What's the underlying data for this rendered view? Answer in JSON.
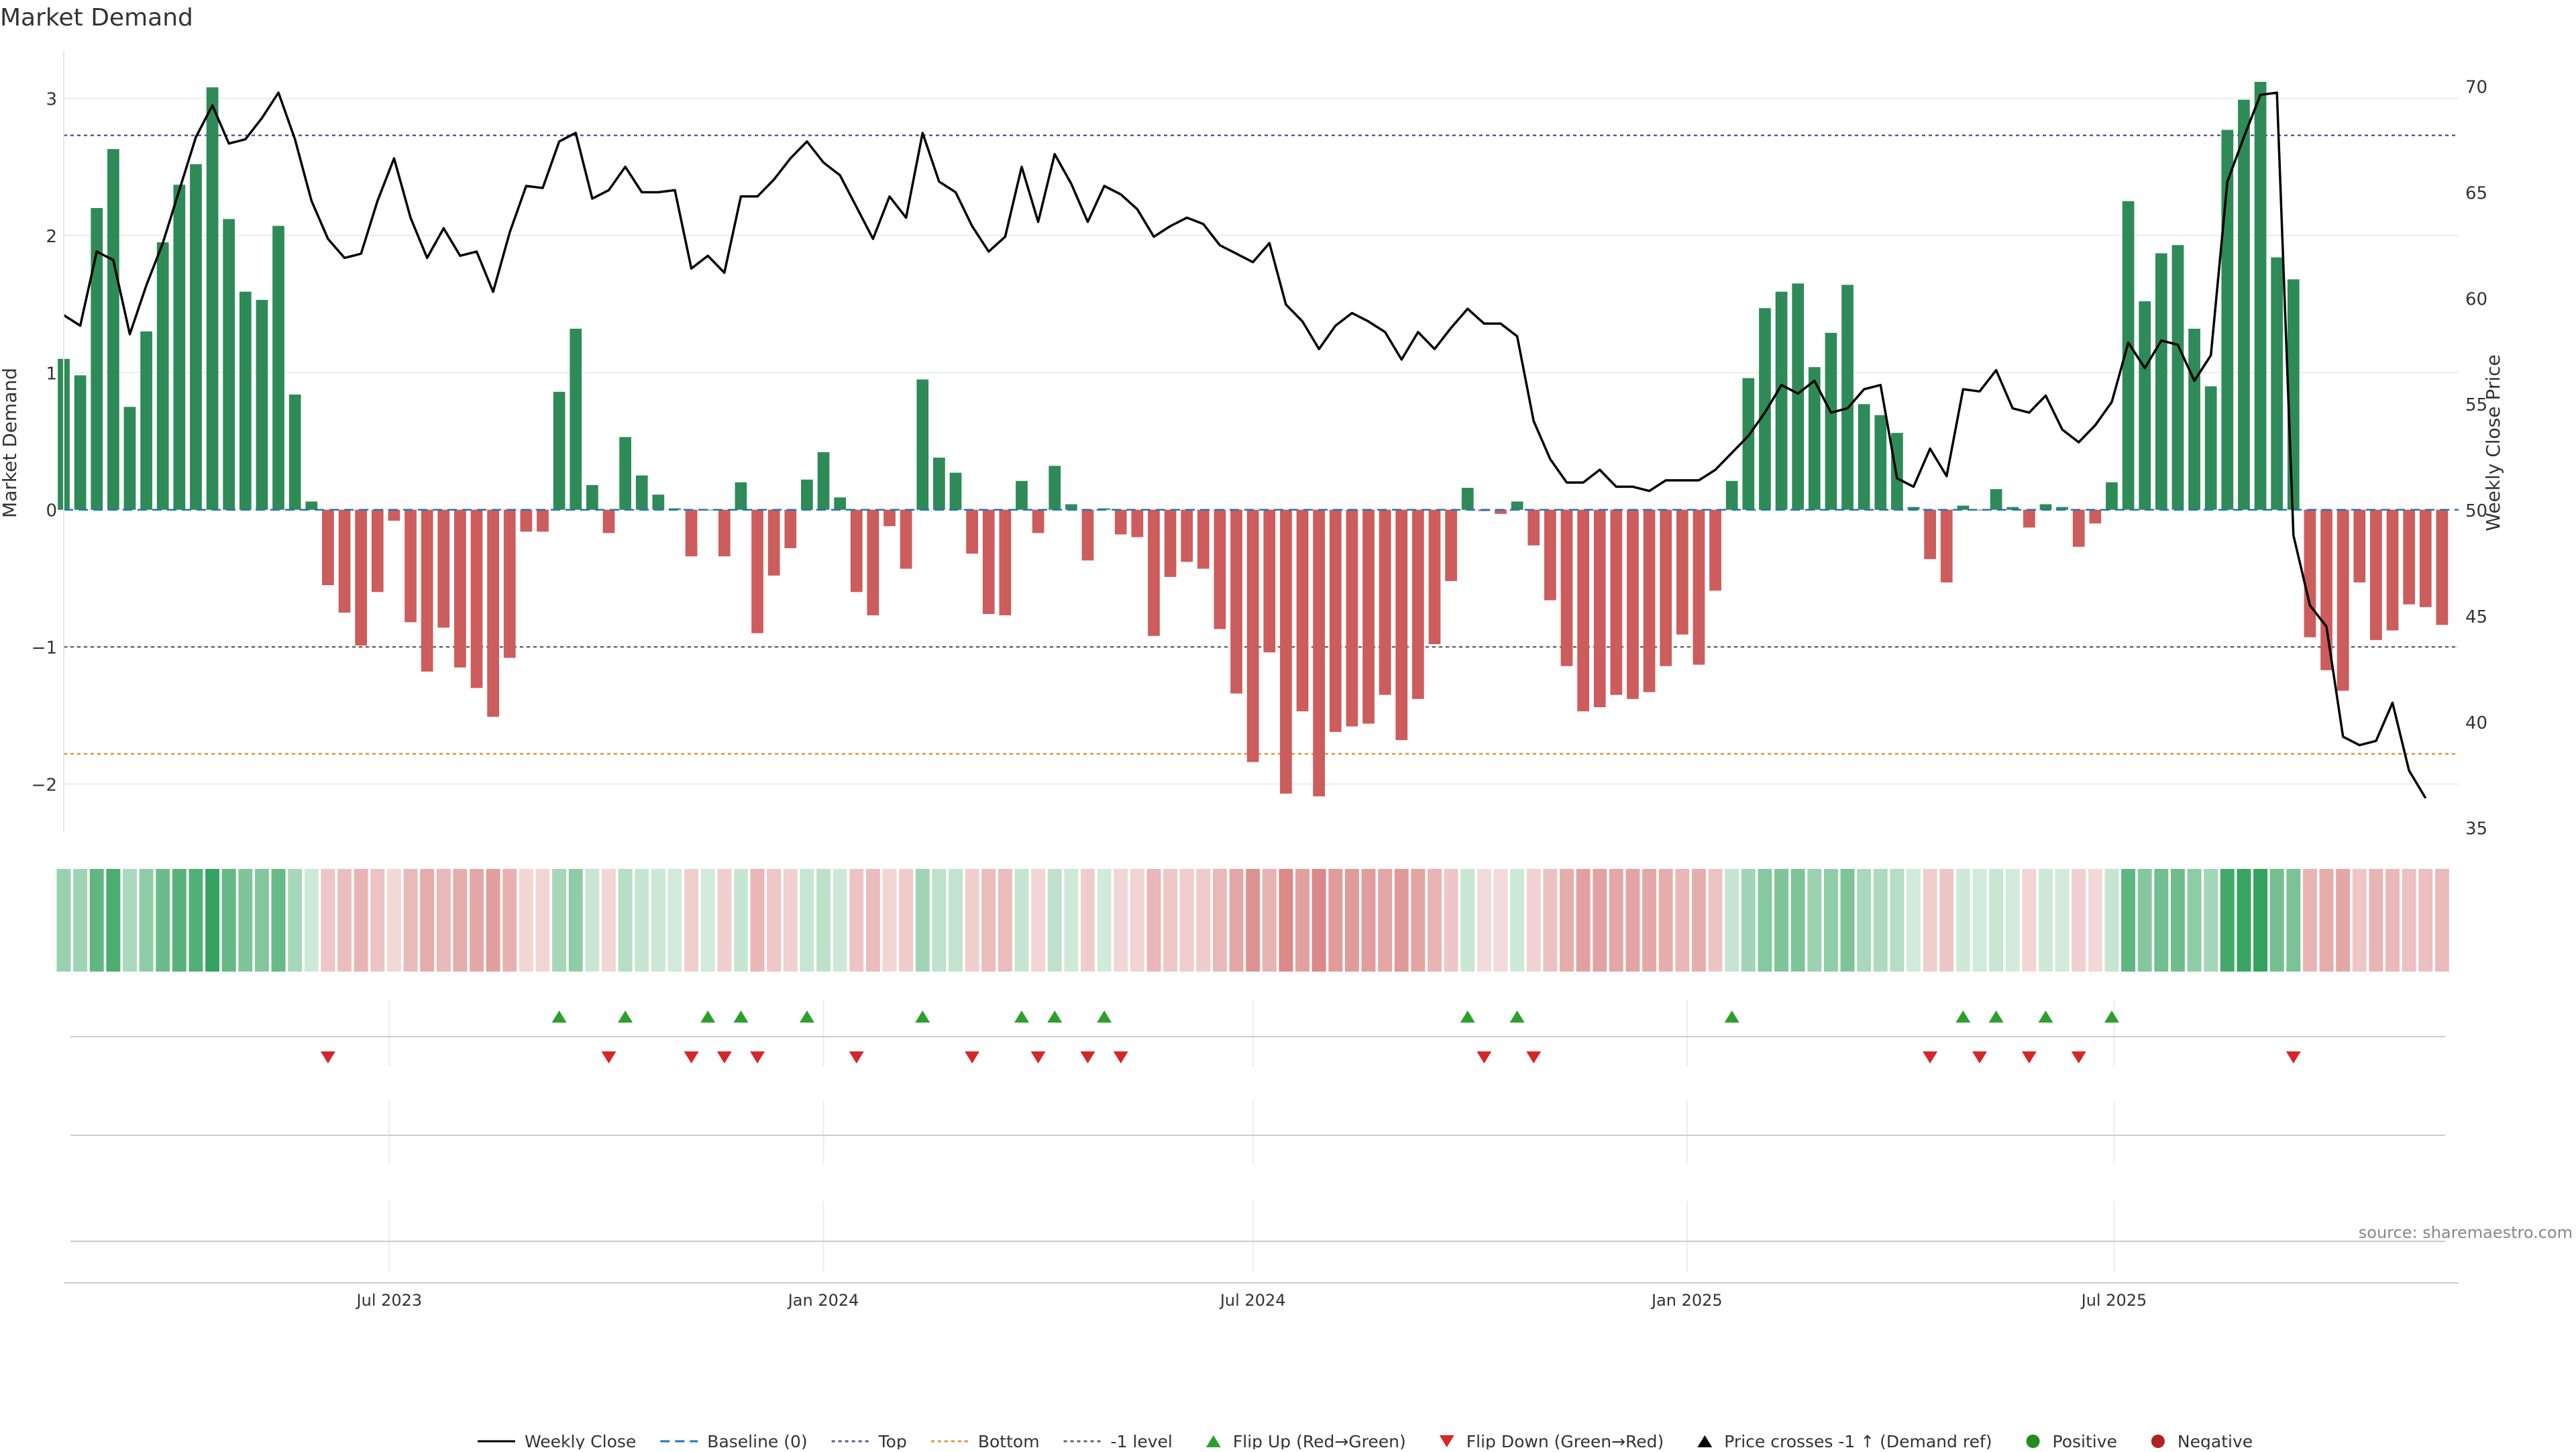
{
  "chart_data": {
    "type": "bar",
    "title": "Market Demand",
    "ylabel_left": "Market Demand",
    "ylabel_right": "Weekly Close Price",
    "source": "source: sharemaestro.com",
    "left_axis": {
      "ylim": [
        -2.35,
        3.35
      ],
      "ticks": [
        3,
        2,
        1,
        0,
        -1,
        -2
      ],
      "tick_labels": [
        "3",
        "2",
        "1",
        "0",
        "−1",
        "−2"
      ]
    },
    "right_axis": {
      "ylim": [
        34.8,
        71.7
      ],
      "ticks": [
        70,
        65,
        60,
        55,
        50,
        45,
        40,
        35
      ],
      "tick_labels": [
        "70",
        "65",
        "60",
        "55",
        "50",
        "45",
        "40",
        "35"
      ]
    },
    "reference_lines": {
      "top": 2.73,
      "bottom": -1.78,
      "minus_one": -1.0,
      "baseline": 0
    },
    "x_range": [
      "2023-02-13",
      "2025-11-24"
    ],
    "x_ticks": [
      {
        "date": "2023-07-01",
        "label": "Jul 2023"
      },
      {
        "date": "2024-01-01",
        "label": "Jan 2024"
      },
      {
        "date": "2024-07-01",
        "label": "Jul 2024"
      },
      {
        "date": "2025-01-01",
        "label": "Jan 2025"
      },
      {
        "date": "2025-07-01",
        "label": "Jul 2025"
      }
    ],
    "weeks": {
      "start_date": "2023-02-13",
      "interval_days": 7
    },
    "demand": [
      1.1,
      0.98,
      2.2,
      2.63,
      0.75,
      1.3,
      1.95,
      2.37,
      2.52,
      3.08,
      2.12,
      1.59,
      1.53,
      2.07,
      0.84,
      0.06,
      -0.55,
      -0.75,
      -0.99,
      -0.6,
      -0.08,
      -0.82,
      -1.18,
      -0.86,
      -1.15,
      -1.3,
      -1.51,
      -1.08,
      -0.16,
      -0.16,
      0.86,
      1.32,
      0.18,
      -0.17,
      0.53,
      0.25,
      0.11,
      0.01,
      -0.34,
      0.0,
      -0.34,
      0.2,
      -0.9,
      -0.48,
      -0.28,
      0.22,
      0.42,
      0.09,
      -0.6,
      -0.77,
      -0.12,
      -0.43,
      0.95,
      0.38,
      0.27,
      -0.32,
      -0.76,
      -0.77,
      0.21,
      -0.17,
      0.32,
      0.04,
      -0.37,
      0.01,
      -0.18,
      -0.2,
      -0.92,
      -0.49,
      -0.38,
      -0.43,
      -0.87,
      -1.34,
      -1.84,
      -1.04,
      -2.07,
      -1.47,
      -2.09,
      -1.62,
      -1.58,
      -1.56,
      -1.35,
      -1.68,
      -1.38,
      -0.98,
      -0.52,
      0.16,
      -0.01,
      -0.03,
      0.06,
      -0.26,
      -0.66,
      -1.14,
      -1.47,
      -1.44,
      -1.35,
      -1.38,
      -1.33,
      -1.14,
      -0.91,
      -1.13,
      -0.59,
      0.21,
      0.96,
      1.47,
      1.59,
      1.65,
      1.04,
      1.29,
      1.64,
      0.77,
      0.69,
      0.56,
      0.02,
      -0.36,
      -0.53,
      0.03,
      0.0,
      0.15,
      0.02,
      -0.13,
      0.04,
      0.02,
      -0.27,
      -0.1,
      0.2,
      2.25,
      1.52,
      1.87,
      1.93,
      1.32,
      0.9,
      2.77,
      2.99,
      3.12,
      1.84,
      1.68,
      -0.93,
      -1.17,
      -1.32,
      -0.53,
      -0.95,
      -0.88,
      -0.69,
      -0.71,
      -0.84
    ],
    "close": [
      59.2,
      58.7,
      62.2,
      61.8,
      58.3,
      60.6,
      62.6,
      65.1,
      67.6,
      69.1,
      67.3,
      67.5,
      68.5,
      69.7,
      67.5,
      64.6,
      62.8,
      61.9,
      62.1,
      64.6,
      66.6,
      63.8,
      61.9,
      63.3,
      62.0,
      62.2,
      60.3,
      63.1,
      65.3,
      65.2,
      67.4,
      67.8,
      64.7,
      65.1,
      66.2,
      65.0,
      65.0,
      65.1,
      61.4,
      62.0,
      61.2,
      64.8,
      64.8,
      65.6,
      66.6,
      67.4,
      66.4,
      65.8,
      64.3,
      62.8,
      64.8,
      63.8,
      67.8,
      65.5,
      65.0,
      63.4,
      62.2,
      62.9,
      66.2,
      63.6,
      66.8,
      65.4,
      63.6,
      65.3,
      64.9,
      64.2,
      62.9,
      63.4,
      63.8,
      63.5,
      62.5,
      62.1,
      61.7,
      62.6,
      59.7,
      58.9,
      57.6,
      58.7,
      59.3,
      58.9,
      58.4,
      57.1,
      58.4,
      57.6,
      58.6,
      59.5,
      58.8,
      58.8,
      58.2,
      54.2,
      52.4,
      51.3,
      51.3,
      51.9,
      51.1,
      51.1,
      50.9,
      51.4,
      51.4,
      51.4,
      51.9,
      52.7,
      53.5,
      54.6,
      55.9,
      55.5,
      56.1,
      54.6,
      54.8,
      55.7,
      55.9,
      51.5,
      51.1,
      52.9,
      51.6,
      55.7,
      55.6,
      56.6,
      54.8,
      54.6,
      55.4,
      53.8,
      53.2,
      54.0,
      55.1,
      57.9,
      56.7,
      58.0,
      57.8,
      56.1,
      57.3,
      65.5,
      67.6,
      69.6,
      69.7,
      48.8,
      45.5,
      44.5,
      39.3,
      38.9,
      39.1,
      40.9,
      37.7,
      36.4
    ],
    "flip_up_indices": [
      30,
      34,
      39,
      41,
      45,
      52,
      58,
      60,
      63,
      85,
      88,
      101,
      115,
      117,
      120,
      124
    ],
    "flip_down_indices": [
      16,
      33,
      38,
      40,
      42,
      48,
      55,
      59,
      62,
      64,
      86,
      89,
      113,
      116,
      119,
      122,
      135
    ],
    "legend": [
      {
        "label": "Weekly Close",
        "marker": "line-solid",
        "color": "#000000"
      },
      {
        "label": "Baseline (0)",
        "marker": "line-dashed",
        "color": "#1f77b4"
      },
      {
        "label": "Top",
        "marker": "line-dotted",
        "color": "#5a5a9e"
      },
      {
        "label": "Bottom",
        "marker": "line-dotted",
        "color": "#e0943a"
      },
      {
        "label": "-1 level",
        "marker": "line-dotted",
        "color": "#666666"
      },
      {
        "label": "Flip Up (Red→Green)",
        "marker": "triangle-up",
        "color": "#2ca02c"
      },
      {
        "label": "Flip Down (Green→Red)",
        "marker": "triangle-down",
        "color": "#d62728"
      },
      {
        "label": "Price crosses -1 ↑ (Demand ref)",
        "marker": "triangle-up",
        "color": "#000000"
      },
      {
        "label": "Positive",
        "marker": "circle",
        "color": "#228b22"
      },
      {
        "label": "Negative",
        "marker": "circle",
        "color": "#b22222"
      }
    ]
  },
  "colors": {
    "positive_bar": "#2e8b57",
    "negative_bar": "#cd5c5c",
    "price_line": "#000000",
    "baseline": "#1f77b4",
    "top_line": "#5a5a9e",
    "bottom_line": "#e0943a",
    "minus_one_line": "#666666",
    "flip_up": "#2ca02c",
    "flip_down": "#d62728"
  }
}
